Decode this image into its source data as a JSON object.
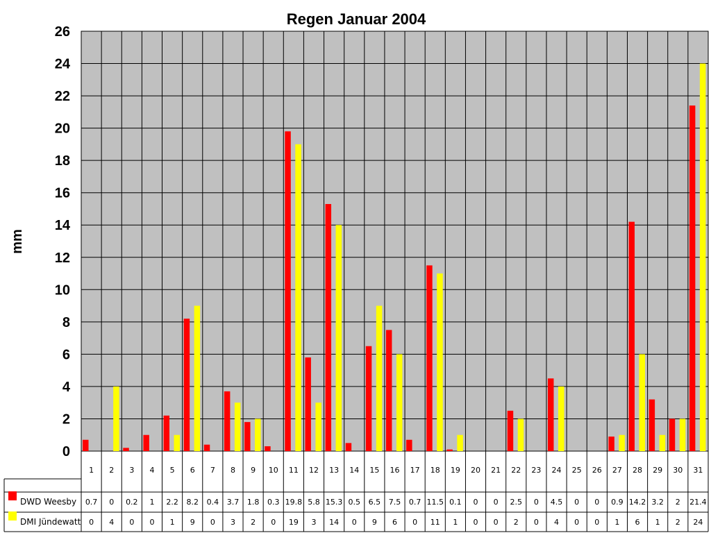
{
  "chart_data": {
    "type": "bar",
    "title": "Regen Januar 2004",
    "ylabel": "mm",
    "ylim": [
      0,
      26
    ],
    "yticks": [
      "0",
      "2",
      "4",
      "6",
      "8",
      "10",
      "12",
      "14",
      "16",
      "18",
      "20",
      "22",
      "24",
      "26"
    ],
    "grid": true,
    "categories": [
      "1",
      "2",
      "3",
      "4",
      "5",
      "6",
      "7",
      "8",
      "9",
      "10",
      "11",
      "12",
      "13",
      "14",
      "15",
      "16",
      "17",
      "18",
      "19",
      "20",
      "21",
      "22",
      "23",
      "24",
      "25",
      "26",
      "27",
      "28",
      "29",
      "30",
      "31"
    ],
    "series": [
      {
        "name": "DWD Weesby",
        "color": "#ff0000",
        "values": [
          0.7,
          0,
          0.2,
          1,
          2.2,
          8.2,
          0.4,
          3.7,
          1.8,
          0.3,
          19.8,
          5.8,
          15.3,
          0.5,
          6.5,
          7.5,
          0.7,
          11.5,
          0.1,
          0,
          0,
          2.5,
          0,
          4.5,
          0,
          0,
          0.9,
          14.2,
          3.2,
          2,
          21.4
        ]
      },
      {
        "name": "DMI Jündewatt",
        "color": "#ffff00",
        "values": [
          0,
          4,
          0,
          0,
          1,
          9,
          0,
          3,
          2,
          0,
          19,
          3,
          14,
          0,
          9,
          6,
          0,
          11,
          1,
          0,
          0,
          2,
          0,
          4,
          0,
          0,
          1,
          6,
          1,
          2,
          24
        ]
      }
    ],
    "table_rows": [
      {
        "label": "DWD Weesby",
        "cells": [
          "0.7",
          "0",
          "0.2",
          "1",
          "2.2",
          "8.2",
          "0.4",
          "3.7",
          "1.8",
          "0.3",
          "19.8",
          "5.8",
          "15.3",
          "0.5",
          "6.5",
          "7.5",
          "0.7",
          "11.5",
          "0.1",
          "0",
          "0",
          "2.5",
          "0",
          "4.5",
          "0",
          "0",
          "0.9",
          "14.2",
          "3.2",
          "2",
          "21.4"
        ]
      },
      {
        "label": "DMI Jündewatt",
        "cells": [
          "0",
          "4",
          "0",
          "0",
          "1",
          "9",
          "0",
          "3",
          "2",
          "0",
          "19",
          "3",
          "14",
          "0",
          "9",
          "6",
          "0",
          "11",
          "1",
          "0",
          "0",
          "2",
          "0",
          "4",
          "0",
          "0",
          "1",
          "6",
          "1",
          "2",
          "24"
        ]
      }
    ]
  },
  "colors": {
    "plot_background": "#c0c0c0",
    "grid": "#000000"
  }
}
